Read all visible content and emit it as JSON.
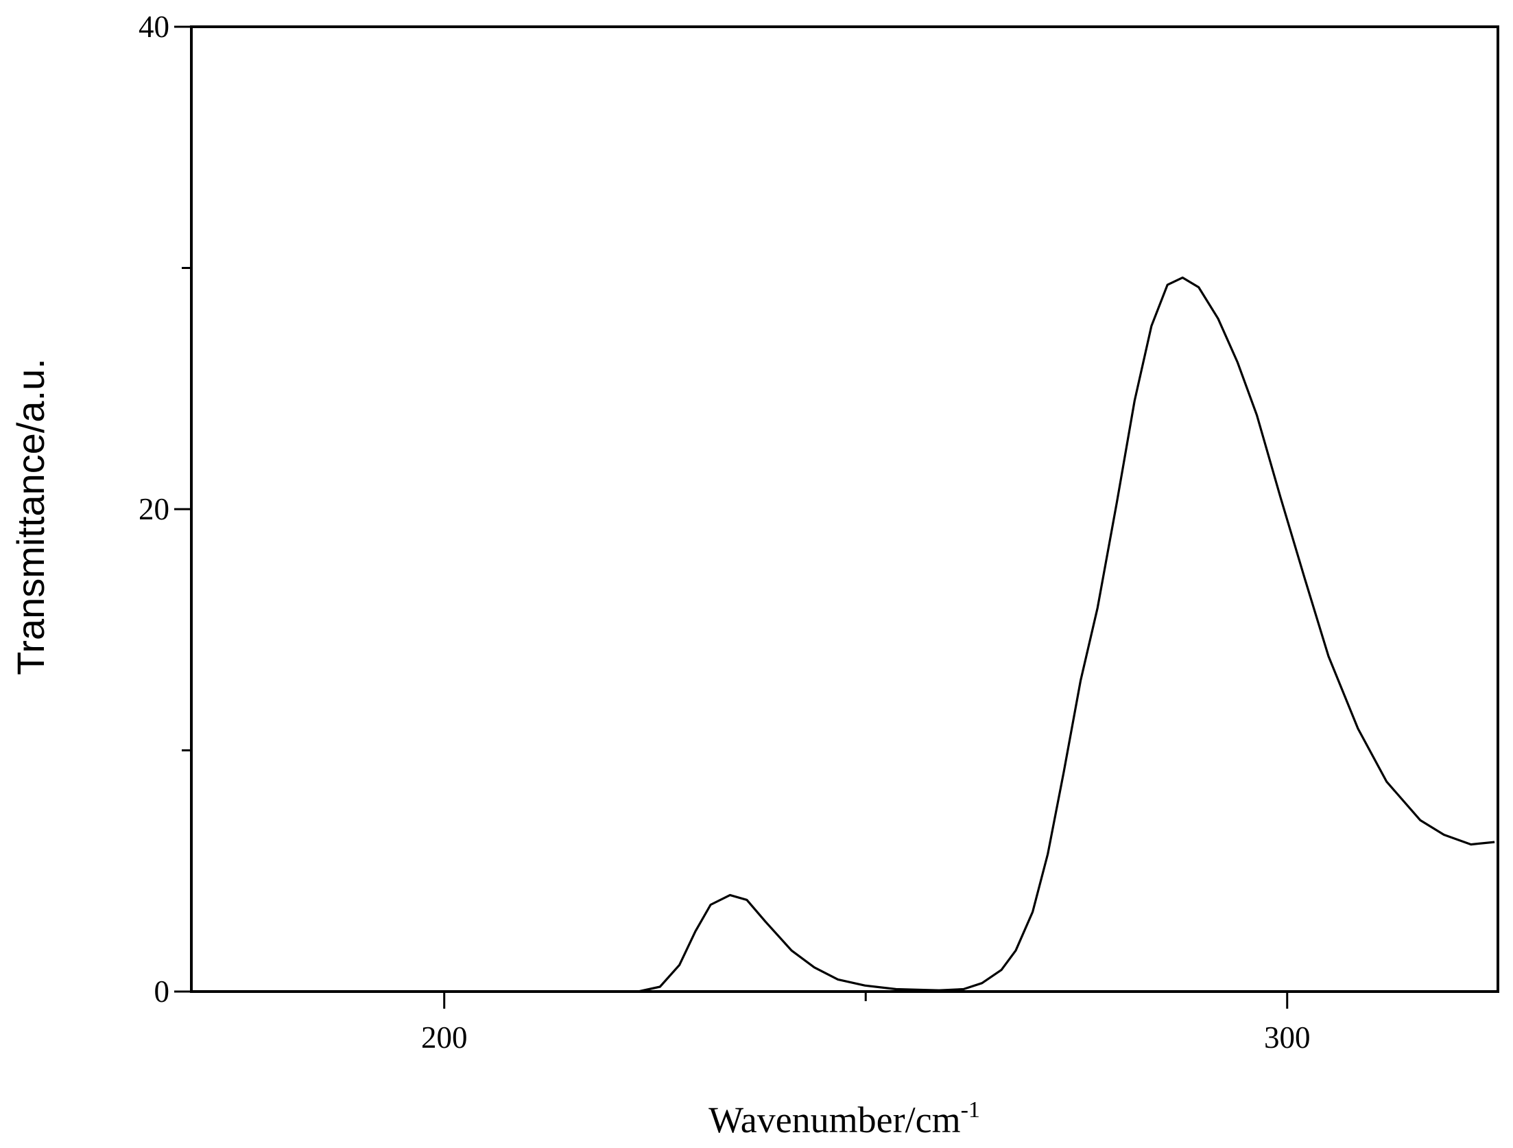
{
  "chart_data": {
    "type": "line",
    "x_label": "Wavenumber/cm",
    "x_label_superscript": "-1",
    "y_label": "Transmittance/a.u.",
    "x": [
      170,
      223,
      225.6,
      227.9,
      229.8,
      231.6,
      233.9,
      235.9,
      238.1,
      241.2,
      243.9,
      246.7,
      249.9,
      253.6,
      258.7,
      261.6,
      263.8,
      266.1,
      267.8,
      269.8,
      271.6,
      273.5,
      275.5,
      277.5,
      279.8,
      281.9,
      283.9,
      285.8,
      287.6,
      289.5,
      291.8,
      294.1,
      296.4,
      299.2,
      302.1,
      304.9,
      308.4,
      311.8,
      315.8,
      318.6,
      321.8,
      324.6
    ],
    "values": [
      0,
      0,
      0.2,
      1.1,
      2.5,
      3.6,
      4.0,
      3.8,
      2.9,
      1.7,
      1.0,
      0.5,
      0.25,
      0.1,
      0.05,
      0.1,
      0.35,
      0.9,
      1.7,
      3.3,
      5.7,
      9.1,
      12.9,
      15.9,
      20.3,
      24.5,
      27.6,
      29.3,
      29.6,
      29.2,
      27.9,
      26.1,
      23.9,
      20.5,
      17.1,
      13.9,
      10.9,
      8.7,
      7.1,
      6.5,
      6.1,
      6.2
    ],
    "color": "#000000",
    "xlim": [
      170,
      325
    ],
    "ylim": [
      0,
      40
    ],
    "xticks": [
      200,
      300
    ],
    "xminorticks": [
      250
    ],
    "yticks": [
      0,
      20,
      40
    ],
    "yminorticks": [
      10,
      30
    ]
  }
}
